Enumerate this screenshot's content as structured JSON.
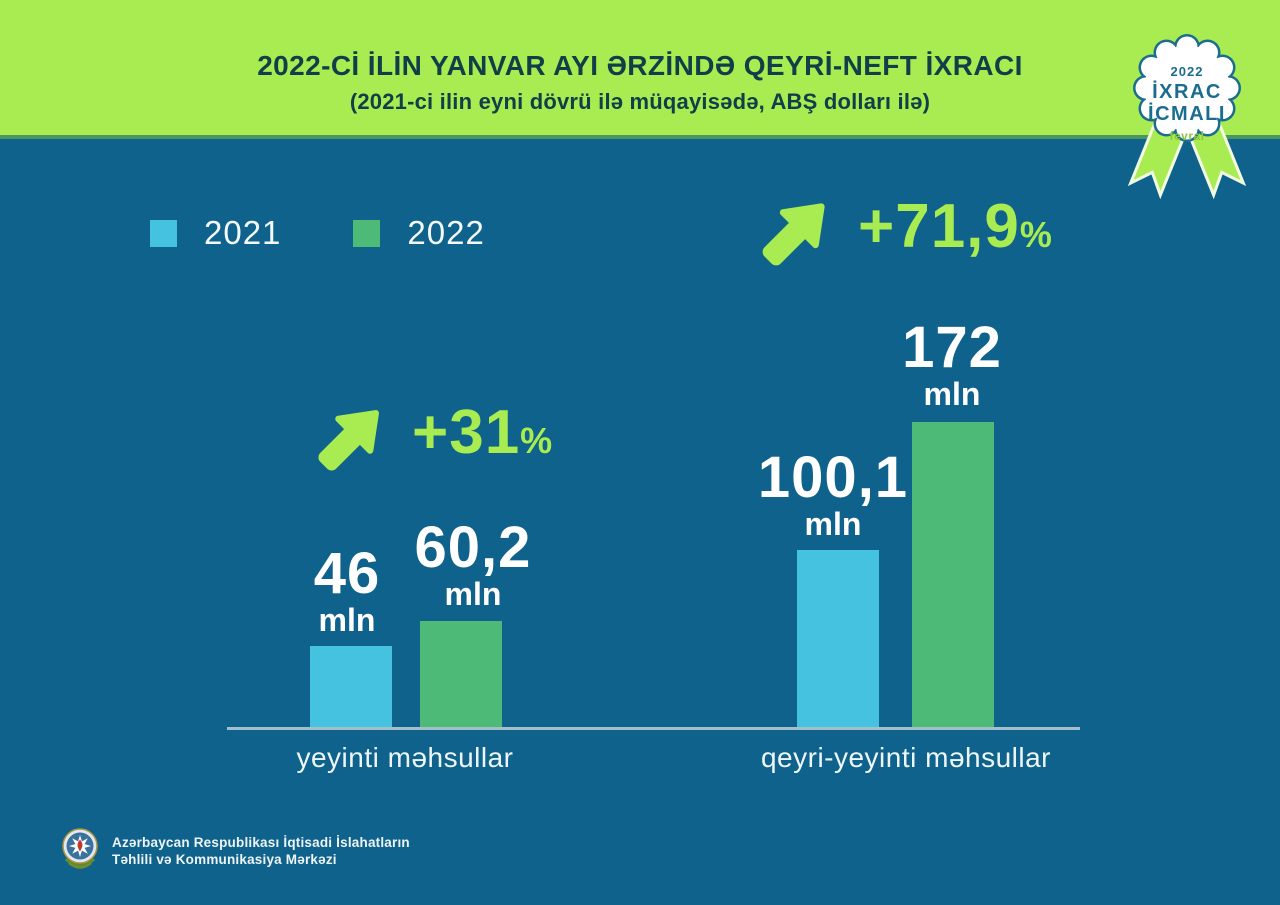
{
  "header": {
    "title": "2022-Cİ İLİN YANVAR AYI ƏRZİNDƏ QEYRİ-NEFT İXRACI",
    "subtitle": "(2021-ci ilin eyni dövrü ilə müqayisədə, ABŞ dolları ilə)"
  },
  "badge": {
    "year": "2022",
    "title_line1": "İXRAC",
    "title_line2": "İCMALI",
    "month": "fevral"
  },
  "chart_data": {
    "type": "bar",
    "title": "2022-Cİ İLİN YANVAR AYI ƏRZİNDƏ QEYRİ-NEFT İXRACI",
    "subtitle": "(2021-ci ilin eyni dövrü ilə müqayisədə, ABŞ dolları ilə)",
    "unit": "mln",
    "currency": "ABŞ dolları",
    "categories": [
      "yeyinti məhsullar",
      "qeyri-yeyinti məhsullar"
    ],
    "series": [
      {
        "name": "2021",
        "color": "#45c2e0",
        "values": [
          46,
          100.1
        ]
      },
      {
        "name": "2022",
        "color": "#4dba78",
        "values": [
          60.2,
          172
        ]
      }
    ],
    "growth_percent": [
      31,
      71.9
    ],
    "legend_position": "top-left",
    "grid": false,
    "ylim": [
      0,
      180
    ]
  },
  "groups": [
    {
      "category": "yeyinti məhsullar",
      "growth_value": "+31",
      "growth_unit": "%",
      "bars": [
        {
          "year": "2021",
          "value_label": "46",
          "unit": "mln"
        },
        {
          "year": "2022",
          "value_label": "60,2",
          "unit": "mln"
        }
      ]
    },
    {
      "category": "qeyri-yeyinti məhsullar",
      "growth_value": "+71,9",
      "growth_unit": "%",
      "bars": [
        {
          "year": "2021",
          "value_label": "100,1",
          "unit": "mln"
        },
        {
          "year": "2022",
          "value_label": "172",
          "unit": "mln"
        }
      ]
    }
  ],
  "footer": {
    "org_line1": "Azərbaycan Respublikası İqtisadi İslahatların",
    "org_line2": "Təhlili və Kommunikasiya Mərkəzi"
  },
  "colors": {
    "header_green": "#a8ec52",
    "background_teal": "#0e628b",
    "bar_2021": "#45c2e0",
    "bar_2022": "#4dba78",
    "accent_growth_green": "#a8ec52",
    "title_text": "#113e48",
    "badge_teal": "#1b6d90",
    "badge_month_green": "#8cc63f"
  }
}
